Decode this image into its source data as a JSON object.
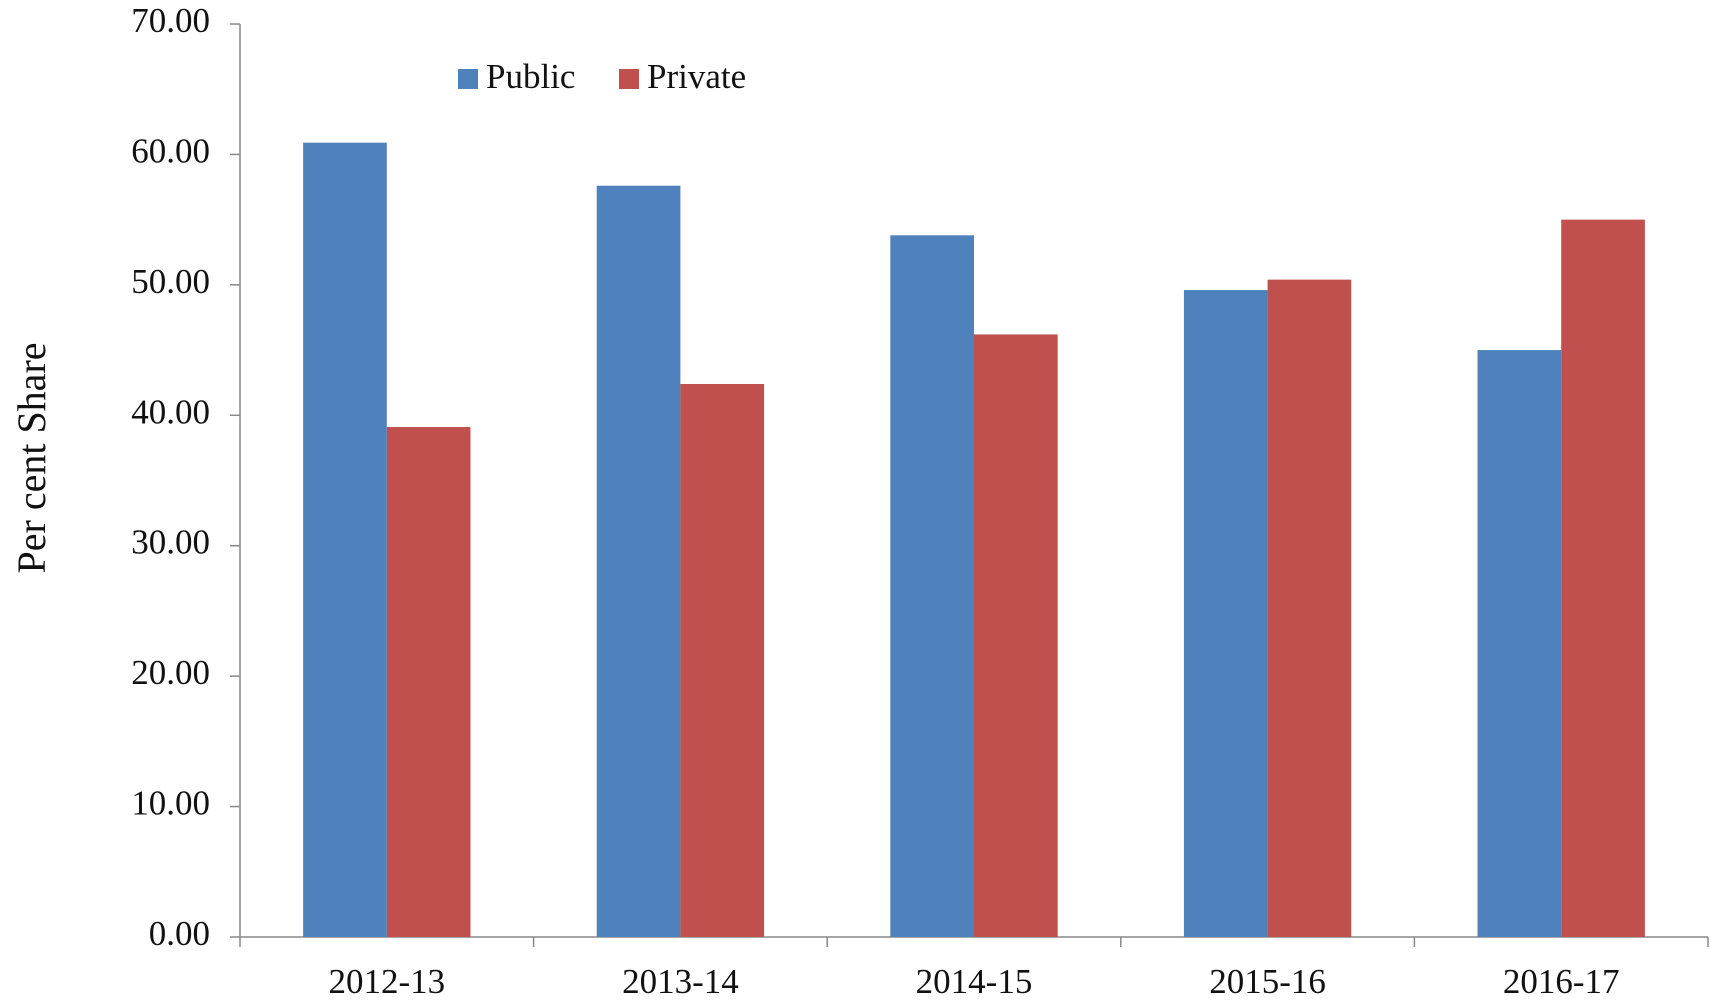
{
  "chart_data": {
    "type": "bar",
    "y_axis_label": "Per cent Share",
    "categories": [
      "2012-13",
      "2013-14",
      "2014-15",
      "2015-16",
      "2016-17"
    ],
    "series": [
      {
        "name": "Public",
        "color": "#4f81bd",
        "values": [
          60.9,
          57.6,
          53.8,
          49.6,
          45.0
        ]
      },
      {
        "name": "Private",
        "color": "#c0504d",
        "values": [
          39.1,
          42.4,
          46.2,
          50.4,
          55.0
        ]
      }
    ],
    "ylim": [
      0,
      70
    ],
    "yticks": [
      {
        "value": 0,
        "label": "0.00"
      },
      {
        "value": 10,
        "label": "10.00"
      },
      {
        "value": 20,
        "label": "20.00"
      },
      {
        "value": 30,
        "label": "30.00"
      },
      {
        "value": 40,
        "label": "40.00"
      },
      {
        "value": 50,
        "label": "50.00"
      },
      {
        "value": 60,
        "label": "60.00"
      },
      {
        "value": 70,
        "label": "70.00"
      }
    ],
    "legend": "top"
  }
}
